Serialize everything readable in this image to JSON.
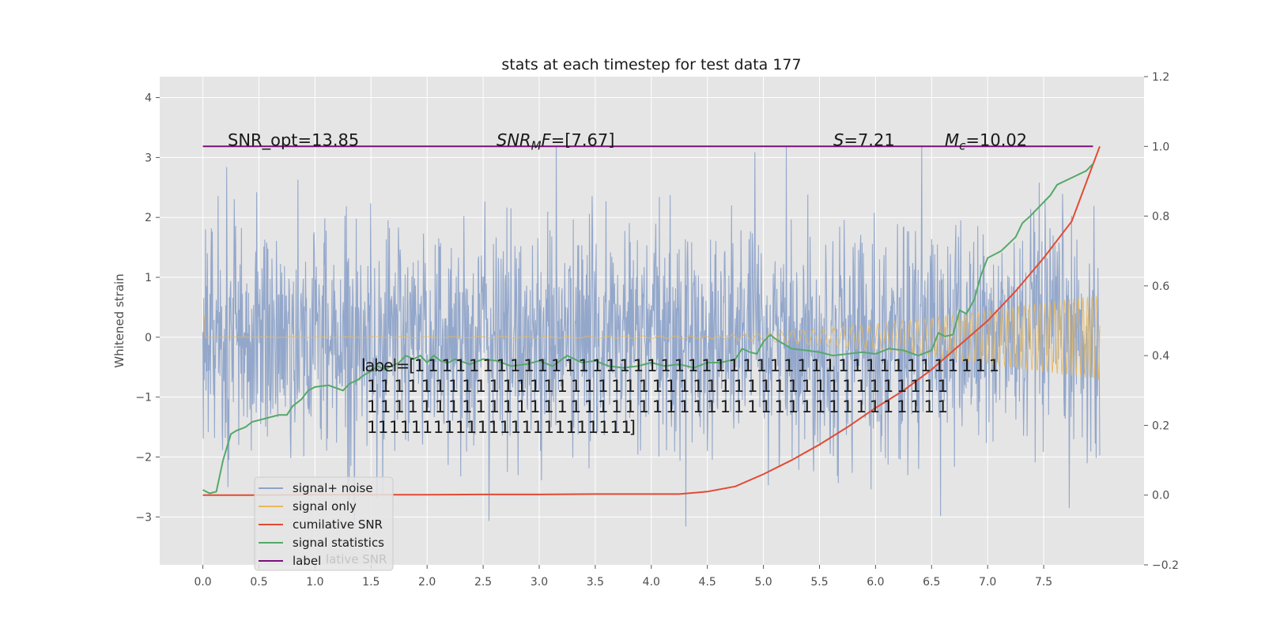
{
  "chart_data": {
    "type": "line",
    "title": "stats at each timestep for test data 177",
    "ylabel": "Whitened strain",
    "xlim": [
      -0.385,
      8.395
    ],
    "ylim": [
      -3.8,
      4.35
    ],
    "y2lim": [
      -0.2,
      1.2
    ],
    "x_ticks": [
      0.0,
      0.5,
      1.0,
      1.5,
      2.0,
      2.5,
      3.0,
      3.5,
      4.0,
      4.5,
      5.0,
      5.5,
      6.0,
      6.5,
      7.0,
      7.5
    ],
    "x_tick_labels": [
      "0.0",
      "0.5",
      "1.0",
      "1.5",
      "2.0",
      "2.5",
      "3.0",
      "3.5",
      "4.0",
      "4.5",
      "5.0",
      "5.5",
      "6.0",
      "6.5",
      "7.0",
      "7.5"
    ],
    "y_ticks": [
      -3,
      -2,
      -1,
      0,
      1,
      2,
      3,
      4
    ],
    "y_tick_labels": [
      "−3",
      "−2",
      "−1",
      "0",
      "1",
      "2",
      "3",
      "4"
    ],
    "y2_ticks": [
      -0.2,
      0.0,
      0.2,
      0.4,
      0.6,
      0.8,
      1.0,
      1.2
    ],
    "y2_tick_labels": [
      "−0.2",
      "0.0",
      "0.2",
      "0.4",
      "0.6",
      "0.8",
      "1.0",
      "1.2"
    ],
    "grid": true,
    "legend_position": "lower-left",
    "annotations": {
      "snr_opt": "SNR_opt=13.85",
      "snr_mf": "SNR_MF=[7.67]",
      "s": "S=7.21",
      "mc": "M_c=10.02",
      "label_lines": [
        "label=[1 1 1 1 1 1 1 1 1 1 1 1 1 1 1 1 1 1 1 1 1 1 1 1 1 1 1 1 1 1 1 1 1 1 1 1 1 1 1 1 1 1 1",
        "1 1 1 1 1 1 1 1 1 1 1 1 1 1 1 1 1 1 1 1 1 1 1 1 1 1 1 1 1 1 1 1 1 1 1 1 1 1 1 1 1 1 1",
        "1 1 1 1 1 1 1 1 1 1 1 1 1 1 1 1 1 1 1 1 1 1 1 1 1 1 1 1 1 1 1 1 1 1 1 1 1 1 1 1 1 1 1",
        "1 1 1 1 1 1 1 1 1 1 1 1 1 1 1 1 1 1 1 1 1 1 1 1]"
      ]
    },
    "series": [
      {
        "name": "signal+ noise",
        "axis": "left",
        "color": "#8ea3c9",
        "description_values": "white noise, amplitude ~±2.5 with spikes to ~4, t=0..8",
        "x_range": [
          0,
          8
        ],
        "sample_dt": 0.004
      },
      {
        "name": "signal only",
        "axis": "left",
        "color": "#e8b85a",
        "envelope": {
          "t": [
            0.0,
            4.5,
            5.0,
            5.5,
            6.0,
            6.5,
            7.0,
            7.5,
            8.0
          ],
          "amp": [
            0.0,
            0.02,
            0.07,
            0.14,
            0.22,
            0.32,
            0.45,
            0.58,
            0.72
          ]
        }
      },
      {
        "name": "cumilative SNR",
        "axis": "right",
        "color": "#e24a33",
        "x": [
          0.0,
          0.5,
          1.0,
          1.5,
          2.0,
          2.5,
          3.0,
          3.5,
          4.0,
          4.25,
          4.5,
          4.75,
          5.0,
          5.25,
          5.5,
          5.75,
          6.0,
          6.25,
          6.5,
          6.75,
          7.0,
          7.25,
          7.5,
          7.75,
          8.0
        ],
        "values": [
          0.0,
          0.0,
          0.001,
          0.001,
          0.001,
          0.002,
          0.002,
          0.003,
          0.003,
          0.003,
          0.01,
          0.025,
          0.06,
          0.1,
          0.145,
          0.195,
          0.25,
          0.3,
          0.36,
          0.43,
          0.5,
          0.585,
          0.68,
          0.785,
          1.0
        ]
      },
      {
        "name": "signal statistics",
        "axis": "right",
        "color": "#55a868",
        "x": [
          0.0,
          0.06,
          0.12,
          0.18,
          0.25,
          0.3,
          0.38,
          0.44,
          0.5,
          0.56,
          0.62,
          0.68,
          0.75,
          0.8,
          0.88,
          0.94,
          1.0,
          1.12,
          1.25,
          1.31,
          1.38,
          1.44,
          1.5,
          1.56,
          1.62,
          1.75,
          1.81,
          1.88,
          1.94,
          2.0,
          2.06,
          2.12,
          2.19,
          2.25,
          2.38,
          2.5,
          2.62,
          2.75,
          2.88,
          3.0,
          3.12,
          3.25,
          3.38,
          3.5,
          3.62,
          3.75,
          3.88,
          4.0,
          4.12,
          4.25,
          4.38,
          4.5,
          4.62,
          4.75,
          4.81,
          4.88,
          4.94,
          5.0,
          5.06,
          5.12,
          5.25,
          5.38,
          5.5,
          5.62,
          5.75,
          5.88,
          6.0,
          6.12,
          6.25,
          6.38,
          6.5,
          6.56,
          6.62,
          6.69,
          6.75,
          6.81,
          6.88,
          6.94,
          7.0,
          7.12,
          7.25,
          7.31,
          7.38,
          7.44,
          7.5,
          7.56,
          7.62,
          7.75,
          7.88,
          7.94
        ],
        "values": [
          0.015,
          0.005,
          0.01,
          0.1,
          0.175,
          0.185,
          0.195,
          0.21,
          0.215,
          0.22,
          0.225,
          0.23,
          0.23,
          0.255,
          0.275,
          0.3,
          0.31,
          0.315,
          0.3,
          0.32,
          0.33,
          0.345,
          0.355,
          0.37,
          0.36,
          0.38,
          0.4,
          0.39,
          0.4,
          0.38,
          0.4,
          0.385,
          0.38,
          0.39,
          0.375,
          0.39,
          0.385,
          0.37,
          0.375,
          0.385,
          0.37,
          0.4,
          0.38,
          0.385,
          0.37,
          0.365,
          0.37,
          0.38,
          0.37,
          0.375,
          0.365,
          0.38,
          0.38,
          0.39,
          0.42,
          0.41,
          0.405,
          0.44,
          0.46,
          0.445,
          0.42,
          0.415,
          0.41,
          0.4,
          0.405,
          0.41,
          0.405,
          0.42,
          0.415,
          0.4,
          0.415,
          0.465,
          0.455,
          0.46,
          0.53,
          0.52,
          0.56,
          0.63,
          0.68,
          0.7,
          0.74,
          0.78,
          0.8,
          0.82,
          0.84,
          0.86,
          0.89,
          0.91,
          0.93,
          0.95
        ]
      },
      {
        "name": "label",
        "axis": "right",
        "color": "#7b0f7b",
        "x": [
          0.0,
          7.94
        ],
        "values": [
          1.0,
          1.0
        ]
      }
    ],
    "legend_entries": [
      "signal+ noise",
      "signal only",
      "cumilative SNR",
      "signal statistics",
      "label"
    ],
    "legend_ghost_text": "lative SNR"
  },
  "colors": {
    "plot_background": "#e5e5e5",
    "grid": "#ffffff",
    "axis_text": "#4d4d4d"
  }
}
